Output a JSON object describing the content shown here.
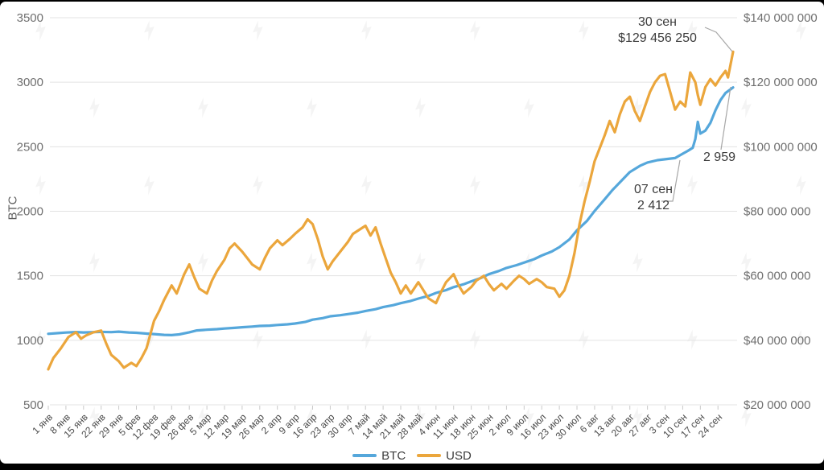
{
  "chart_data": {
    "type": "line",
    "title": "",
    "legend": [
      "BTC",
      "USD"
    ],
    "legend_position": "bottom-center",
    "grid": true,
    "left_axis": {
      "title": "BTC",
      "tick_labels": [
        "3500",
        "3000",
        "2500",
        "2000",
        "1500",
        "1000",
        "500"
      ],
      "range": [
        500,
        3500
      ]
    },
    "right_axis": {
      "tick_labels": [
        "$140 000 000",
        "$120 000 000",
        "$100 000 000",
        "$80 000 000",
        "$60 000 000",
        "$40 000 000",
        "$20 000 000"
      ],
      "range_usd": [
        20000000,
        140000000
      ]
    },
    "x_axis": {
      "tick_labels": [
        "1 янв",
        "8 янв",
        "15 янв",
        "22 янв",
        "29 янв",
        "5 фев",
        "12 фев",
        "19 фев",
        "26 фев",
        "5 мар",
        "12 мар",
        "19 мар",
        "26 мар",
        "2 апр",
        "9 апр",
        "16 апр",
        "23 апр",
        "30 апр",
        "7 май",
        "14 май",
        "21 май",
        "28 май",
        "4 июн",
        "11 июн",
        "18 июн",
        "25 июн",
        "2 июл",
        "9 июл",
        "16 июл",
        "23 июл",
        "30 июл",
        "6 авг",
        "13 авг",
        "20 авг",
        "27 авг",
        "3 сен",
        "10 сен",
        "17 сен",
        "24 сен"
      ],
      "label_rotation_deg": -45,
      "day_range": [
        1,
        273
      ]
    },
    "series": [
      {
        "name": "BTC",
        "axis": "left",
        "color": "#55A7DB",
        "points_day_value": [
          [
            1,
            1050
          ],
          [
            5,
            1056
          ],
          [
            8,
            1060
          ],
          [
            12,
            1064
          ],
          [
            15,
            1061
          ],
          [
            19,
            1063
          ],
          [
            22,
            1065
          ],
          [
            26,
            1063
          ],
          [
            29,
            1067
          ],
          [
            33,
            1061
          ],
          [
            36,
            1058
          ],
          [
            40,
            1052
          ],
          [
            43,
            1048
          ],
          [
            47,
            1042
          ],
          [
            50,
            1040
          ],
          [
            53,
            1046
          ],
          [
            57,
            1062
          ],
          [
            60,
            1076
          ],
          [
            64,
            1082
          ],
          [
            68,
            1086
          ],
          [
            71,
            1091
          ],
          [
            75,
            1096
          ],
          [
            78,
            1101
          ],
          [
            82,
            1106
          ],
          [
            85,
            1111
          ],
          [
            89,
            1114
          ],
          [
            92,
            1119
          ],
          [
            96,
            1124
          ],
          [
            99,
            1130
          ],
          [
            103,
            1142
          ],
          [
            106,
            1160
          ],
          [
            110,
            1172
          ],
          [
            113,
            1186
          ],
          [
            117,
            1194
          ],
          [
            120,
            1203
          ],
          [
            124,
            1214
          ],
          [
            127,
            1227
          ],
          [
            131,
            1241
          ],
          [
            134,
            1257
          ],
          [
            138,
            1272
          ],
          [
            141,
            1288
          ],
          [
            145,
            1305
          ],
          [
            148,
            1323
          ],
          [
            152,
            1344
          ],
          [
            155,
            1367
          ],
          [
            159,
            1389
          ],
          [
            162,
            1412
          ],
          [
            166,
            1434
          ],
          [
            169,
            1457
          ],
          [
            173,
            1484
          ],
          [
            176,
            1512
          ],
          [
            180,
            1537
          ],
          [
            183,
            1561
          ],
          [
            187,
            1582
          ],
          [
            190,
            1603
          ],
          [
            194,
            1629
          ],
          [
            197,
            1657
          ],
          [
            201,
            1688
          ],
          [
            204,
            1722
          ],
          [
            208,
            1782
          ],
          [
            211,
            1852
          ],
          [
            215,
            1926
          ],
          [
            218,
            2002
          ],
          [
            222,
            2092
          ],
          [
            225,
            2162
          ],
          [
            229,
            2243
          ],
          [
            232,
            2304
          ],
          [
            236,
            2352
          ],
          [
            239,
            2378
          ],
          [
            243,
            2396
          ],
          [
            246,
            2403
          ],
          [
            250,
            2412
          ],
          [
            253,
            2446
          ],
          [
            255,
            2468
          ],
          [
            257,
            2492
          ],
          [
            258,
            2560
          ],
          [
            259,
            2693
          ],
          [
            260,
            2602
          ],
          [
            262,
            2625
          ],
          [
            264,
            2684
          ],
          [
            266,
            2782
          ],
          [
            268,
            2862
          ],
          [
            270,
            2916
          ],
          [
            273,
            2959
          ]
        ]
      },
      {
        "name": "USD",
        "axis": "right",
        "color": "#EBA63C",
        "unit": "million USD",
        "points_day_value": [
          [
            1,
            31
          ],
          [
            3,
            34.5
          ],
          [
            6,
            37.5
          ],
          [
            9,
            41
          ],
          [
            12,
            42.5
          ],
          [
            14,
            40.5
          ],
          [
            16,
            41.5
          ],
          [
            19,
            42.5
          ],
          [
            22,
            43
          ],
          [
            24,
            39
          ],
          [
            26,
            35.5
          ],
          [
            29,
            33.5
          ],
          [
            31,
            31.5
          ],
          [
            34,
            33
          ],
          [
            36,
            32
          ],
          [
            38,
            34.5
          ],
          [
            40,
            37.5
          ],
          [
            43,
            46
          ],
          [
            45,
            49
          ],
          [
            47,
            52.5
          ],
          [
            50,
            57
          ],
          [
            52,
            54.5
          ],
          [
            55,
            60.5
          ],
          [
            57,
            63.5
          ],
          [
            59,
            59.5
          ],
          [
            61,
            56
          ],
          [
            64,
            54.5
          ],
          [
            66,
            58.5
          ],
          [
            68,
            61.5
          ],
          [
            71,
            65
          ],
          [
            73,
            68.5
          ],
          [
            75,
            70
          ],
          [
            78,
            67.5
          ],
          [
            80,
            65.5
          ],
          [
            82,
            63.5
          ],
          [
            85,
            62
          ],
          [
            87,
            65.5
          ],
          [
            89,
            68.5
          ],
          [
            92,
            71
          ],
          [
            94,
            69.5
          ],
          [
            97,
            71.5
          ],
          [
            99,
            73
          ],
          [
            102,
            75
          ],
          [
            104,
            77.5
          ],
          [
            106,
            76
          ],
          [
            108,
            71.5
          ],
          [
            110,
            66
          ],
          [
            112,
            62
          ],
          [
            114,
            64.5
          ],
          [
            117,
            67.5
          ],
          [
            120,
            70.5
          ],
          [
            122,
            73
          ],
          [
            125,
            74.5
          ],
          [
            127,
            75.5
          ],
          [
            129,
            72.5
          ],
          [
            131,
            75
          ],
          [
            133,
            70
          ],
          [
            135,
            65.5
          ],
          [
            137,
            61
          ],
          [
            139,
            58
          ],
          [
            141,
            54.5
          ],
          [
            143,
            57
          ],
          [
            145,
            54.5
          ],
          [
            148,
            58
          ],
          [
            150,
            55.5
          ],
          [
            152,
            53
          ],
          [
            155,
            51.5
          ],
          [
            157,
            55
          ],
          [
            159,
            58
          ],
          [
            162,
            60.5
          ],
          [
            164,
            57
          ],
          [
            166,
            54.5
          ],
          [
            169,
            56.5
          ],
          [
            171,
            58.5
          ],
          [
            174,
            60
          ],
          [
            176,
            57.5
          ],
          [
            178,
            55.5
          ],
          [
            181,
            57.5
          ],
          [
            183,
            56
          ],
          [
            186,
            58.5
          ],
          [
            188,
            60
          ],
          [
            190,
            59
          ],
          [
            192,
            57.5
          ],
          [
            195,
            59
          ],
          [
            197,
            58
          ],
          [
            199,
            56.5
          ],
          [
            202,
            56
          ],
          [
            204,
            53.5
          ],
          [
            206,
            55.5
          ],
          [
            208,
            60
          ],
          [
            210,
            67
          ],
          [
            212,
            76
          ],
          [
            214,
            83
          ],
          [
            216,
            89
          ],
          [
            218,
            95.5
          ],
          [
            220,
            99.5
          ],
          [
            222,
            103.5
          ],
          [
            224,
            108
          ],
          [
            226,
            104.5
          ],
          [
            228,
            110
          ],
          [
            230,
            114
          ],
          [
            232,
            115.5
          ],
          [
            234,
            111
          ],
          [
            236,
            108
          ],
          [
            238,
            112.5
          ],
          [
            240,
            117
          ],
          [
            242,
            120
          ],
          [
            244,
            122
          ],
          [
            246,
            122.5
          ],
          [
            248,
            117
          ],
          [
            250,
            111.5
          ],
          [
            252,
            114
          ],
          [
            254,
            112.5
          ],
          [
            256,
            123
          ],
          [
            258,
            120
          ],
          [
            259,
            116
          ],
          [
            260,
            113
          ],
          [
            262,
            118.5
          ],
          [
            264,
            121
          ],
          [
            266,
            119
          ],
          [
            268,
            121.5
          ],
          [
            270,
            123.5
          ],
          [
            271,
            121.5
          ],
          [
            273,
            129.45625
          ]
        ]
      }
    ],
    "annotations": {
      "sep30": {
        "date": "30 сен",
        "value": "$129 456 250",
        "series": "USD"
      },
      "sep07": {
        "date": "07 сен",
        "value": "2 412",
        "series": "BTC"
      },
      "final_btc": {
        "value": "2 959",
        "series": "BTC"
      }
    }
  },
  "colors": {
    "btc_line": "#55A7DB",
    "usd_line": "#EBA63C",
    "grid": "#e3e3e3",
    "tick_text": "#6f6f6f",
    "x_label_text": "#4a4a4a",
    "leader_line": "#a6a6a6",
    "frame_background": "#000000",
    "canvas_background": "#ffffff"
  },
  "watermark": {
    "icon": "forklog-logo-watermark"
  }
}
